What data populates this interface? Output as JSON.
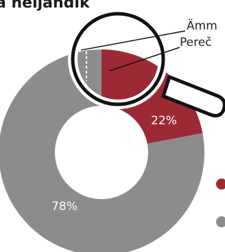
{
  "chart_data": {
    "type": "pie",
    "title": "a neljandik",
    "categories": [
      "",
      ""
    ],
    "values": [
      22,
      78
    ],
    "labels": [
      "22%",
      "78%"
    ],
    "colors": [
      "#9b2a34",
      "#8c8c8c"
    ],
    "callouts": [
      "Ämm",
      "Pereč"
    ],
    "donut": true
  }
}
